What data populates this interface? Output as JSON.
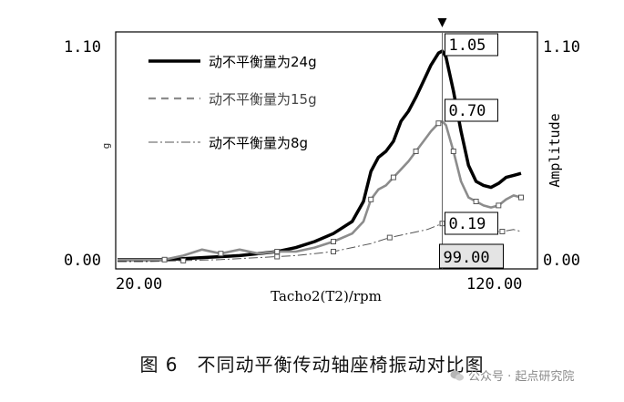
{
  "chart_data": {
    "type": "line",
    "xlabel": "Tacho2(T2)/rpm",
    "ylabel_left": "g",
    "ylabel_right": "Amplitude",
    "xlim": [
      20,
      120
    ],
    "ylim": [
      0,
      1.1
    ],
    "x_tick_labels": [
      "20.00",
      "120.00"
    ],
    "y_tick_labels_left": [
      "1.10",
      "0.00"
    ],
    "y_tick_labels_right": [
      "1.10",
      "0.00"
    ],
    "grid": false,
    "legend_position": "top-left",
    "cursor": {
      "x": 99,
      "x_label": "99.00",
      "values": [
        "1.05",
        "0.70",
        "0.19"
      ]
    },
    "series": [
      {
        "name": "动不平衡量为24g",
        "color": "#000000",
        "style": "solid",
        "x": [
          20,
          25,
          30,
          35,
          40,
          45,
          50,
          55,
          60,
          65,
          70,
          75,
          78,
          80,
          82,
          84,
          86,
          88,
          90,
          92,
          94,
          96,
          98,
          99,
          100,
          102,
          104,
          106,
          108,
          110,
          112,
          114,
          116,
          118,
          120
        ],
        "values": [
          0.01,
          0.01,
          0.015,
          0.02,
          0.025,
          0.03,
          0.04,
          0.05,
          0.07,
          0.1,
          0.14,
          0.2,
          0.3,
          0.45,
          0.52,
          0.55,
          0.6,
          0.7,
          0.75,
          0.82,
          0.9,
          0.98,
          1.04,
          1.05,
          1.02,
          0.85,
          0.65,
          0.48,
          0.4,
          0.38,
          0.37,
          0.39,
          0.42,
          0.43,
          0.44
        ]
      },
      {
        "name": "动不平衡量为15g",
        "color": "#8c8c8c",
        "style": "dashed",
        "x": [
          20,
          25,
          30,
          35,
          40,
          45,
          50,
          55,
          60,
          65,
          70,
          75,
          78,
          80,
          82,
          84,
          86,
          88,
          90,
          92,
          94,
          96,
          98,
          99,
          100,
          102,
          104,
          106,
          108,
          110,
          112,
          114,
          116,
          118,
          120
        ],
        "values": [
          0.01,
          0.01,
          0.03,
          0.06,
          0.04,
          0.06,
          0.04,
          0.05,
          0.05,
          0.07,
          0.1,
          0.14,
          0.2,
          0.31,
          0.36,
          0.38,
          0.42,
          0.46,
          0.5,
          0.55,
          0.6,
          0.65,
          0.69,
          0.7,
          0.68,
          0.55,
          0.4,
          0.32,
          0.3,
          0.28,
          0.27,
          0.28,
          0.31,
          0.33,
          0.32
        ]
      },
      {
        "name": "动不平衡量为8g",
        "color": "#555555",
        "style": "dashdot",
        "x": [
          20,
          30,
          40,
          50,
          55,
          60,
          65,
          70,
          75,
          80,
          85,
          90,
          95,
          99,
          102,
          105,
          108,
          110,
          112,
          115,
          118,
          120
        ],
        "values": [
          0.0,
          0.005,
          0.01,
          0.02,
          0.025,
          0.03,
          0.04,
          0.05,
          0.07,
          0.09,
          0.12,
          0.14,
          0.16,
          0.19,
          0.18,
          0.17,
          0.16,
          0.155,
          0.15,
          0.15,
          0.16,
          0.15
        ]
      }
    ]
  },
  "caption": "图 6　不同动平衡传动轴座椅振动对比图",
  "watermark": "公众号 · 起点研究院"
}
